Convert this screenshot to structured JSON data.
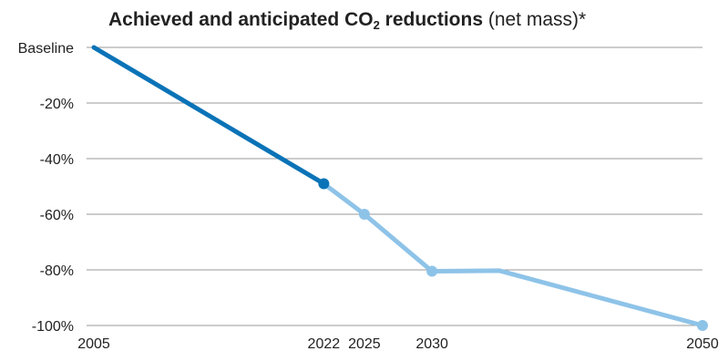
{
  "title": {
    "bold_prefix": "Achieved and anticipated CO",
    "subscript": "2",
    "bold_suffix": " reductions",
    "normal_suffix": " (net mass)*"
  },
  "chart_data": {
    "type": "line",
    "title": "Achieved and anticipated CO2 reductions (net mass)*",
    "xlabel": "",
    "ylabel": "",
    "x_ticks": [
      "2005",
      "2022",
      "2025",
      "2030",
      "2050"
    ],
    "y_ticks": [
      "Baseline",
      "-20%",
      "-40%",
      "-60%",
      "-80%",
      "-100%"
    ],
    "ylim": [
      -100,
      0
    ],
    "xlim": [
      2005,
      2050
    ],
    "grid": true,
    "series": [
      {
        "role": "achieved",
        "color": "#0a73b7",
        "points": [
          {
            "x": 2005,
            "y": 0
          },
          {
            "x": 2022,
            "y": -49
          }
        ]
      },
      {
        "role": "anticipated",
        "color": "#8ec3e8",
        "points": [
          {
            "x": 2022,
            "y": -49
          },
          {
            "x": 2025,
            "y": -60
          },
          {
            "x": 2030,
            "y": -80.5
          },
          {
            "x": 2035,
            "y": -80.3
          },
          {
            "x": 2050,
            "y": -100
          }
        ]
      }
    ],
    "markers": [
      {
        "x": 2022,
        "y": -49,
        "color": "#0a73b7"
      },
      {
        "x": 2025,
        "y": -60,
        "color": "#8ec3e8"
      },
      {
        "x": 2030,
        "y": -80.5,
        "color": "#8ec3e8"
      },
      {
        "x": 2050,
        "y": -100,
        "color": "#8ec3e8"
      }
    ]
  }
}
